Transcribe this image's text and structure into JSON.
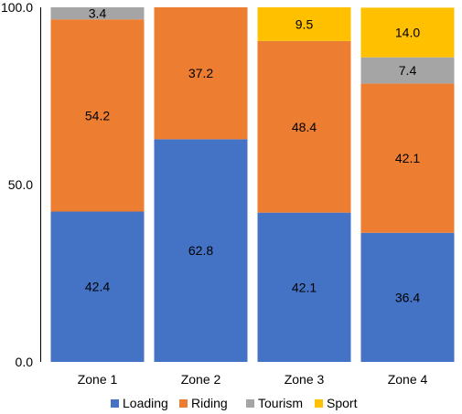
{
  "chart_data": {
    "type": "bar",
    "stacked": true,
    "categories": [
      "Zone 1",
      "Zone 2",
      "Zone 3",
      "Zone 4"
    ],
    "series": [
      {
        "name": "Loading",
        "color": "#4472C4",
        "values": [
          42.4,
          62.8,
          42.1,
          36.4
        ]
      },
      {
        "name": "Riding",
        "color": "#ED7D31",
        "values": [
          54.2,
          37.2,
          48.4,
          42.1
        ]
      },
      {
        "name": "Tourism",
        "color": "#A5A5A5",
        "values": [
          3.4,
          0,
          0,
          7.4
        ]
      },
      {
        "name": "Sport",
        "color": "#FFC000",
        "values": [
          0,
          0,
          9.5,
          14.0
        ]
      }
    ],
    "data_labels": [
      [
        "42.4",
        "62.8",
        "42.1",
        "36.4"
      ],
      [
        "54.2",
        "37.2",
        "48.4",
        "42.1"
      ],
      [
        "3.4",
        "",
        "",
        "7.4"
      ],
      [
        "",
        "",
        "9.5",
        "14.0"
      ]
    ],
    "yticks": [
      "0.0",
      "50.0",
      "100.0"
    ],
    "ytick_values": [
      0,
      50,
      100
    ],
    "ylim": [
      0,
      100
    ],
    "grid": false,
    "legend_position": "bottom"
  }
}
